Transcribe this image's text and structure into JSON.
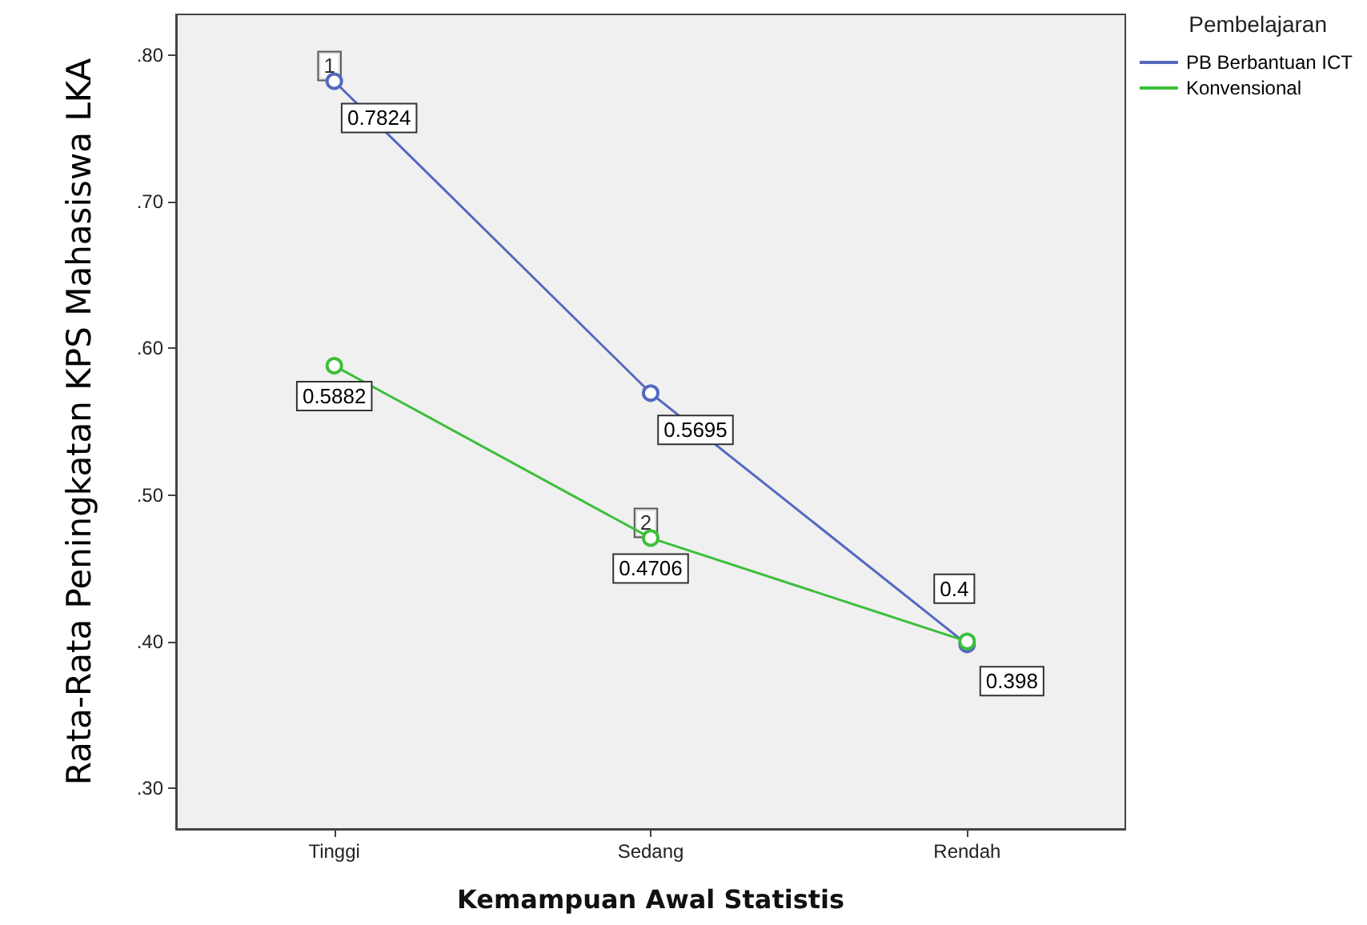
{
  "chart_data": {
    "type": "line",
    "xlabel": "Kemampuan Awal Statistis",
    "ylabel": "Rata-Rata Peningkatan KPS Mahasiswa LKA",
    "legend_title": "Pembelajaran",
    "legend": "right",
    "marker": "circle",
    "grid": false,
    "categories": [
      "Tinggi",
      "Sedang",
      "Rendah"
    ],
    "ylim": [
      0.272,
      0.828
    ],
    "yticks": [
      {
        "value": 0.3,
        "label": ".30"
      },
      {
        "value": 0.4,
        "label": ".40"
      },
      {
        "value": 0.5,
        "label": ".50"
      },
      {
        "value": 0.6,
        "label": ".60"
      },
      {
        "value": 0.7,
        "label": ".70"
      },
      {
        "value": 0.8,
        "label": ".80"
      }
    ],
    "series": [
      {
        "name": "PB Berbantuan ICT",
        "color": "#5468c0",
        "values": [
          0.7824,
          0.5695,
          0.398
        ],
        "value_labels": [
          "0.7824",
          "0.5695",
          "0.398"
        ]
      },
      {
        "name": "Konvensional",
        "color": "#3cbf3c",
        "values": [
          0.5882,
          0.4706,
          0.4
        ],
        "value_labels": [
          "0.5882",
          "0.4706",
          "0.4"
        ]
      }
    ],
    "annotations": [
      {
        "text": "1",
        "x": "Tinggi",
        "y": 0.7824
      },
      {
        "text": "2",
        "x": "Sedang",
        "y": 0.4706
      }
    ]
  }
}
